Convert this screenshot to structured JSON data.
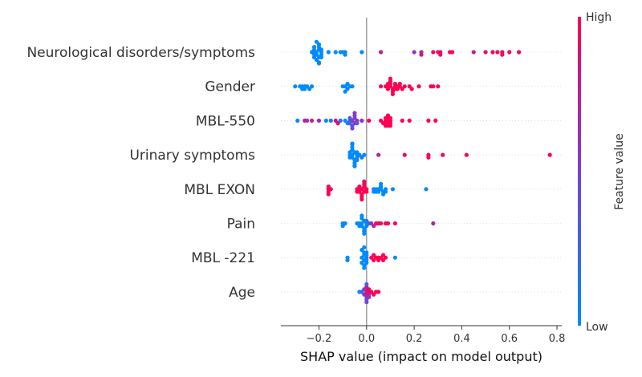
{
  "chart_data": {
    "type": "scatter",
    "subtype": "shap-beeswarm",
    "xlabel": "SHAP value (impact on model output)",
    "xlim": [
      -0.36,
      0.82
    ],
    "xticks": [
      -0.2,
      0.0,
      0.2,
      0.4,
      0.6,
      0.8
    ],
    "xtick_labels": [
      "−0.2",
      "0.0",
      "0.2",
      "0.4",
      "0.6",
      "0.8"
    ],
    "zero_line": true,
    "colorbar": {
      "title": "Feature value",
      "high_label": "High",
      "low_label": "Low",
      "low_color": "#008bfb",
      "high_color": "#ff0052"
    },
    "features": [
      {
        "name": "Neurological disorders/symptoms",
        "points": [
          {
            "x": -0.23,
            "f": 0
          },
          {
            "x": -0.22,
            "f": 0
          },
          {
            "x": -0.22,
            "f": 0
          },
          {
            "x": -0.21,
            "f": 0
          },
          {
            "x": -0.21,
            "f": 0
          },
          {
            "x": -0.2,
            "f": 0
          },
          {
            "x": -0.2,
            "f": 0
          },
          {
            "x": -0.2,
            "f": 0
          },
          {
            "x": -0.19,
            "f": 0
          },
          {
            "x": -0.19,
            "f": 0
          },
          {
            "x": -0.19,
            "f": 0
          },
          {
            "x": -0.22,
            "f": 0
          },
          {
            "x": -0.21,
            "f": 0
          },
          {
            "x": -0.2,
            "f": 0
          },
          {
            "x": -0.2,
            "f": 0
          },
          {
            "x": -0.22,
            "f": 0
          },
          {
            "x": -0.21,
            "f": 0
          },
          {
            "x": -0.22,
            "f": 0
          },
          {
            "x": -0.2,
            "f": 0
          },
          {
            "x": -0.19,
            "f": 0
          },
          {
            "x": -0.16,
            "f": 0
          },
          {
            "x": -0.13,
            "f": 0
          },
          {
            "x": -0.11,
            "f": 0
          },
          {
            "x": -0.1,
            "f": 0
          },
          {
            "x": -0.09,
            "f": 0
          },
          {
            "x": -0.09,
            "f": 0
          },
          {
            "x": -0.02,
            "f": 0
          },
          {
            "x": 0.06,
            "f": 0.8
          },
          {
            "x": 0.2,
            "f": 0.6
          },
          {
            "x": 0.23,
            "f": 0.7
          },
          {
            "x": 0.23,
            "f": 0.85
          },
          {
            "x": 0.28,
            "f": 0.95
          },
          {
            "x": 0.3,
            "f": 0.9
          },
          {
            "x": 0.31,
            "f": 0.95
          },
          {
            "x": 0.31,
            "f": 0.9
          },
          {
            "x": 0.35,
            "f": 0.95
          },
          {
            "x": 0.36,
            "f": 1
          },
          {
            "x": 0.45,
            "f": 0.75
          },
          {
            "x": 0.5,
            "f": 0.9
          },
          {
            "x": 0.53,
            "f": 0.95
          },
          {
            "x": 0.55,
            "f": 0.95
          },
          {
            "x": 0.57,
            "f": 0.95
          },
          {
            "x": 0.57,
            "f": 1
          },
          {
            "x": 0.6,
            "f": 1
          },
          {
            "x": 0.64,
            "f": 0.95
          }
        ]
      },
      {
        "name": "Gender",
        "points": [
          {
            "x": -0.3,
            "f": 0
          },
          {
            "x": -0.28,
            "f": 0
          },
          {
            "x": -0.27,
            "f": 0
          },
          {
            "x": -0.27,
            "f": 0
          },
          {
            "x": -0.26,
            "f": 0
          },
          {
            "x": -0.26,
            "f": 0
          },
          {
            "x": -0.25,
            "f": 0
          },
          {
            "x": -0.24,
            "f": 0
          },
          {
            "x": -0.23,
            "f": 0
          },
          {
            "x": -0.1,
            "f": 0
          },
          {
            "x": -0.09,
            "f": 0
          },
          {
            "x": -0.08,
            "f": 0
          },
          {
            "x": -0.07,
            "f": 0
          },
          {
            "x": -0.06,
            "f": 0
          },
          {
            "x": -0.08,
            "f": 0
          },
          {
            "x": -0.09,
            "f": 0
          },
          {
            "x": 0.06,
            "f": 1
          },
          {
            "x": 0.08,
            "f": 1
          },
          {
            "x": 0.09,
            "f": 1
          },
          {
            "x": 0.09,
            "f": 1
          },
          {
            "x": 0.1,
            "f": 1
          },
          {
            "x": 0.11,
            "f": 1
          },
          {
            "x": 0.12,
            "f": 1
          },
          {
            "x": 0.12,
            "f": 1
          },
          {
            "x": 0.13,
            "f": 1
          },
          {
            "x": 0.14,
            "f": 1
          },
          {
            "x": 0.15,
            "f": 1
          },
          {
            "x": 0.16,
            "f": 1
          },
          {
            "x": 0.1,
            "f": 1
          },
          {
            "x": 0.11,
            "f": 1
          },
          {
            "x": 0.13,
            "f": 1
          },
          {
            "x": 0.09,
            "f": 1
          },
          {
            "x": 0.1,
            "f": 1
          },
          {
            "x": 0.14,
            "f": 1
          },
          {
            "x": 0.12,
            "f": 1
          },
          {
            "x": 0.11,
            "f": 1
          },
          {
            "x": 0.1,
            "f": 1
          },
          {
            "x": 0.18,
            "f": 1
          },
          {
            "x": 0.19,
            "f": 1
          },
          {
            "x": 0.22,
            "f": 1
          },
          {
            "x": 0.27,
            "f": 1
          },
          {
            "x": 0.28,
            "f": 1
          },
          {
            "x": 0.3,
            "f": 1
          }
        ]
      },
      {
        "name": "MBL-550",
        "points": [
          {
            "x": -0.29,
            "f": 0
          },
          {
            "x": -0.26,
            "f": 0.7
          },
          {
            "x": -0.25,
            "f": 0.65
          },
          {
            "x": -0.23,
            "f": 0.75
          },
          {
            "x": -0.2,
            "f": 0.6
          },
          {
            "x": -0.17,
            "f": 0
          },
          {
            "x": -0.15,
            "f": 0.15
          },
          {
            "x": -0.13,
            "f": 0.8
          },
          {
            "x": -0.12,
            "f": 0.9
          },
          {
            "x": -0.11,
            "f": 0.1
          },
          {
            "x": -0.09,
            "f": 0
          },
          {
            "x": -0.08,
            "f": 0
          },
          {
            "x": -0.07,
            "f": 0.35
          },
          {
            "x": -0.06,
            "f": 0.6
          },
          {
            "x": -0.05,
            "f": 0.55
          },
          {
            "x": -0.04,
            "f": 0.6
          },
          {
            "x": -0.05,
            "f": 0.45
          },
          {
            "x": -0.07,
            "f": 0.25
          },
          {
            "x": -0.06,
            "f": 0.4
          },
          {
            "x": -0.05,
            "f": 0.5
          },
          {
            "x": -0.04,
            "f": 0.3
          },
          {
            "x": -0.06,
            "f": 0.45
          },
          {
            "x": -0.05,
            "f": 0.55
          },
          {
            "x": -0.07,
            "f": 0.35
          },
          {
            "x": -0.02,
            "f": 0.6
          },
          {
            "x": 0.01,
            "f": 1
          },
          {
            "x": 0.06,
            "f": 1
          },
          {
            "x": 0.07,
            "f": 1
          },
          {
            "x": 0.08,
            "f": 1
          },
          {
            "x": 0.09,
            "f": 1
          },
          {
            "x": 0.09,
            "f": 1
          },
          {
            "x": 0.1,
            "f": 1
          },
          {
            "x": 0.1,
            "f": 1
          },
          {
            "x": 0.08,
            "f": 1
          },
          {
            "x": 0.09,
            "f": 1
          },
          {
            "x": 0.1,
            "f": 1
          },
          {
            "x": 0.08,
            "f": 1
          },
          {
            "x": 0.09,
            "f": 1
          },
          {
            "x": 0.1,
            "f": 1
          },
          {
            "x": 0.09,
            "f": 1
          },
          {
            "x": 0.08,
            "f": 1
          },
          {
            "x": 0.15,
            "f": 1
          },
          {
            "x": 0.18,
            "f": 1
          },
          {
            "x": 0.26,
            "f": 1
          },
          {
            "x": 0.29,
            "f": 1
          }
        ]
      },
      {
        "name": "Urinary symptoms",
        "points": [
          {
            "x": -0.07,
            "f": 0
          },
          {
            "x": -0.06,
            "f": 0
          },
          {
            "x": -0.06,
            "f": 0
          },
          {
            "x": -0.05,
            "f": 0
          },
          {
            "x": -0.05,
            "f": 0
          },
          {
            "x": -0.04,
            "f": 0
          },
          {
            "x": -0.04,
            "f": 0
          },
          {
            "x": -0.03,
            "f": 0
          },
          {
            "x": -0.06,
            "f": 0
          },
          {
            "x": -0.05,
            "f": 0
          },
          {
            "x": -0.04,
            "f": 0
          },
          {
            "x": -0.07,
            "f": 0
          },
          {
            "x": -0.06,
            "f": 0
          },
          {
            "x": -0.05,
            "f": 0
          },
          {
            "x": -0.06,
            "f": 0
          },
          {
            "x": -0.05,
            "f": 0
          },
          {
            "x": -0.04,
            "f": 0
          },
          {
            "x": -0.06,
            "f": 0
          },
          {
            "x": -0.05,
            "f": 0
          },
          {
            "x": -0.07,
            "f": 0
          },
          {
            "x": -0.06,
            "f": 0
          },
          {
            "x": -0.01,
            "f": 0
          },
          {
            "x": -0.02,
            "f": 0.15
          },
          {
            "x": 0.05,
            "f": 0.7
          },
          {
            "x": 0.16,
            "f": 0.9
          },
          {
            "x": 0.26,
            "f": 0.95
          },
          {
            "x": 0.26,
            "f": 1
          },
          {
            "x": 0.32,
            "f": 0.95
          },
          {
            "x": 0.42,
            "f": 0.95
          },
          {
            "x": 0.77,
            "f": 1
          }
        ]
      },
      {
        "name": "MBL EXON",
        "points": [
          {
            "x": -0.16,
            "f": 1
          },
          {
            "x": -0.16,
            "f": 1
          },
          {
            "x": -0.16,
            "f": 1
          },
          {
            "x": -0.15,
            "f": 1
          },
          {
            "x": -0.16,
            "f": 1
          },
          {
            "x": -0.04,
            "f": 1
          },
          {
            "x": -0.03,
            "f": 1
          },
          {
            "x": -0.02,
            "f": 1
          },
          {
            "x": -0.01,
            "f": 1
          },
          {
            "x": -0.01,
            "f": 1
          },
          {
            "x": 0.0,
            "f": 1
          },
          {
            "x": -0.04,
            "f": 1
          },
          {
            "x": -0.03,
            "f": 1
          },
          {
            "x": -0.02,
            "f": 1
          },
          {
            "x": -0.01,
            "f": 1
          },
          {
            "x": 0.0,
            "f": 1
          },
          {
            "x": -0.03,
            "f": 0.95
          },
          {
            "x": -0.02,
            "f": 1
          },
          {
            "x": -0.01,
            "f": 0.95
          },
          {
            "x": -0.02,
            "f": 1
          },
          {
            "x": 0.03,
            "f": 0
          },
          {
            "x": 0.04,
            "f": 0
          },
          {
            "x": 0.05,
            "f": 0
          },
          {
            "x": 0.06,
            "f": 0
          },
          {
            "x": 0.07,
            "f": 0
          },
          {
            "x": 0.03,
            "f": 0
          },
          {
            "x": 0.04,
            "f": 0
          },
          {
            "x": 0.05,
            "f": 0
          },
          {
            "x": 0.06,
            "f": 0
          },
          {
            "x": 0.07,
            "f": 0
          },
          {
            "x": 0.08,
            "f": 0
          },
          {
            "x": 0.08,
            "f": 0
          },
          {
            "x": 0.06,
            "f": 0
          },
          {
            "x": 0.11,
            "f": 0
          },
          {
            "x": 0.25,
            "f": 0
          }
        ]
      },
      {
        "name": "Pain",
        "points": [
          {
            "x": -0.1,
            "f": 0
          },
          {
            "x": -0.09,
            "f": 0
          },
          {
            "x": -0.1,
            "f": 0
          },
          {
            "x": -0.04,
            "f": 0
          },
          {
            "x": -0.03,
            "f": 0
          },
          {
            "x": -0.02,
            "f": 0
          },
          {
            "x": -0.02,
            "f": 0
          },
          {
            "x": -0.01,
            "f": 0
          },
          {
            "x": -0.01,
            "f": 0
          },
          {
            "x": 0.0,
            "f": 0
          },
          {
            "x": -0.02,
            "f": 0
          },
          {
            "x": -0.01,
            "f": 0
          },
          {
            "x": -0.03,
            "f": 0
          },
          {
            "x": 0.0,
            "f": 0
          },
          {
            "x": -0.02,
            "f": 0
          },
          {
            "x": -0.01,
            "f": 0
          },
          {
            "x": 0.0,
            "f": 0.1
          },
          {
            "x": 0.01,
            "f": 0.2
          },
          {
            "x": 0.02,
            "f": 0.6
          },
          {
            "x": 0.03,
            "f": 0.7
          },
          {
            "x": 0.04,
            "f": 0.9
          },
          {
            "x": 0.05,
            "f": 1
          },
          {
            "x": 0.06,
            "f": 1
          },
          {
            "x": 0.08,
            "f": 1
          },
          {
            "x": 0.09,
            "f": 1
          },
          {
            "x": 0.12,
            "f": 1
          },
          {
            "x": 0.28,
            "f": 0.7
          }
        ]
      },
      {
        "name": "MBL -221",
        "points": [
          {
            "x": -0.08,
            "f": 0
          },
          {
            "x": -0.08,
            "f": 0
          },
          {
            "x": -0.02,
            "f": 0
          },
          {
            "x": -0.01,
            "f": 0
          },
          {
            "x": -0.01,
            "f": 0
          },
          {
            "x": 0.0,
            "f": 0
          },
          {
            "x": -0.02,
            "f": 0
          },
          {
            "x": -0.01,
            "f": 0
          },
          {
            "x": 0.0,
            "f": 0
          },
          {
            "x": -0.01,
            "f": 0
          },
          {
            "x": 0.0,
            "f": 0
          },
          {
            "x": -0.02,
            "f": 0
          },
          {
            "x": -0.01,
            "f": 0
          },
          {
            "x": 0.0,
            "f": 0
          },
          {
            "x": 0.0,
            "f": 0
          },
          {
            "x": -0.01,
            "f": 0
          },
          {
            "x": 0.02,
            "f": 1
          },
          {
            "x": 0.03,
            "f": 1
          },
          {
            "x": 0.04,
            "f": 1
          },
          {
            "x": 0.05,
            "f": 1
          },
          {
            "x": 0.06,
            "f": 1
          },
          {
            "x": 0.07,
            "f": 1
          },
          {
            "x": 0.08,
            "f": 1
          },
          {
            "x": 0.03,
            "f": 1
          },
          {
            "x": 0.05,
            "f": 1
          },
          {
            "x": 0.07,
            "f": 1
          },
          {
            "x": 0.12,
            "f": 0
          }
        ]
      },
      {
        "name": "Age",
        "points": [
          {
            "x": -0.03,
            "f": 0
          },
          {
            "x": -0.02,
            "f": 0.2
          },
          {
            "x": -0.01,
            "f": 0.5
          },
          {
            "x": 0.0,
            "f": 0.7
          },
          {
            "x": 0.0,
            "f": 0.9
          },
          {
            "x": 0.0,
            "f": 1
          },
          {
            "x": 0.0,
            "f": 0.6
          },
          {
            "x": 0.0,
            "f": 0.8
          },
          {
            "x": 0.0,
            "f": 0.4
          },
          {
            "x": 0.01,
            "f": 1
          },
          {
            "x": 0.01,
            "f": 0.7
          },
          {
            "x": 0.01,
            "f": 0.9
          },
          {
            "x": 0.02,
            "f": 1
          },
          {
            "x": 0.03,
            "f": 1
          },
          {
            "x": 0.04,
            "f": 1
          },
          {
            "x": 0.05,
            "f": 1
          },
          {
            "x": -0.01,
            "f": 0.6
          },
          {
            "x": 0.0,
            "f": 0.3
          },
          {
            "x": 0.0,
            "f": 0.5
          },
          {
            "x": 0.01,
            "f": 0.6
          }
        ]
      }
    ]
  }
}
